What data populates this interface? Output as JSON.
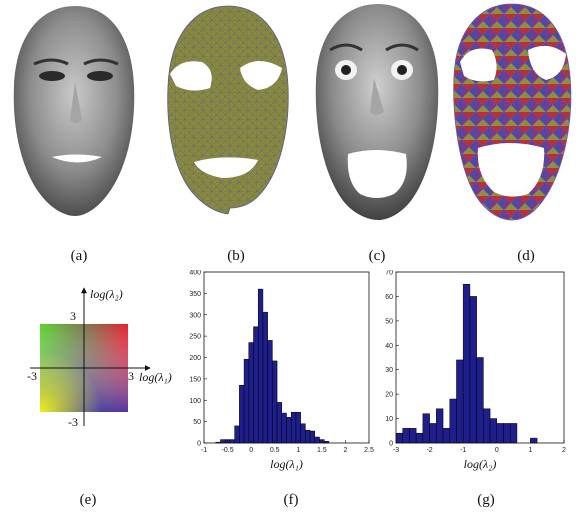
{
  "panel_labels": {
    "a": "(a)",
    "b": "(b)",
    "c": "(c)",
    "d": "(d)",
    "e": "(e)",
    "f": "(f)",
    "g": "(g)"
  },
  "colormap": {
    "x_label": "log(λ₁)",
    "y_label": "log(λ₂)",
    "x_min_label": "-3",
    "x_max_label": "3",
    "y_max_label": "3",
    "y_min_label": "-3"
  },
  "chart_data": [
    {
      "type": "bar",
      "xlabel": "log(λ₁)",
      "ylabel": "",
      "xlim": [
        -1,
        2.5
      ],
      "ylim": [
        0,
        400
      ],
      "x_ticks": [
        "-1",
        "-0.5",
        "0",
        "0.5",
        "1",
        "1.5",
        "2",
        "2.5"
      ],
      "y_ticks": [
        "0",
        "50",
        "100",
        "150",
        "200",
        "250",
        "300",
        "350",
        "400"
      ],
      "bin_start": -0.75,
      "bin_width": 0.1,
      "values": [
        2,
        8,
        8,
        8,
        40,
        135,
        196,
        235,
        272,
        360,
        306,
        240,
        192,
        95,
        70,
        60,
        72,
        72,
        45,
        30,
        28,
        14,
        8,
        4
      ],
      "bar_color": "#1e1e8c"
    },
    {
      "type": "bar",
      "xlabel": "log(λ₂)",
      "ylabel": "",
      "xlim": [
        -3,
        2
      ],
      "ylim": [
        0,
        70
      ],
      "x_ticks": [
        "-3",
        "-2",
        "-1",
        "0",
        "1",
        "2"
      ],
      "y_ticks": [
        "0",
        "10",
        "20",
        "30",
        "40",
        "50",
        "60",
        "70"
      ],
      "bin_start": -3,
      "bin_width": 0.2,
      "values": [
        4,
        6,
        6,
        4,
        12,
        8,
        14,
        6,
        18,
        34,
        65,
        60,
        35,
        14,
        10,
        8,
        8,
        8,
        0,
        0,
        2
      ],
      "bar_color": "#1e1e8c"
    }
  ]
}
